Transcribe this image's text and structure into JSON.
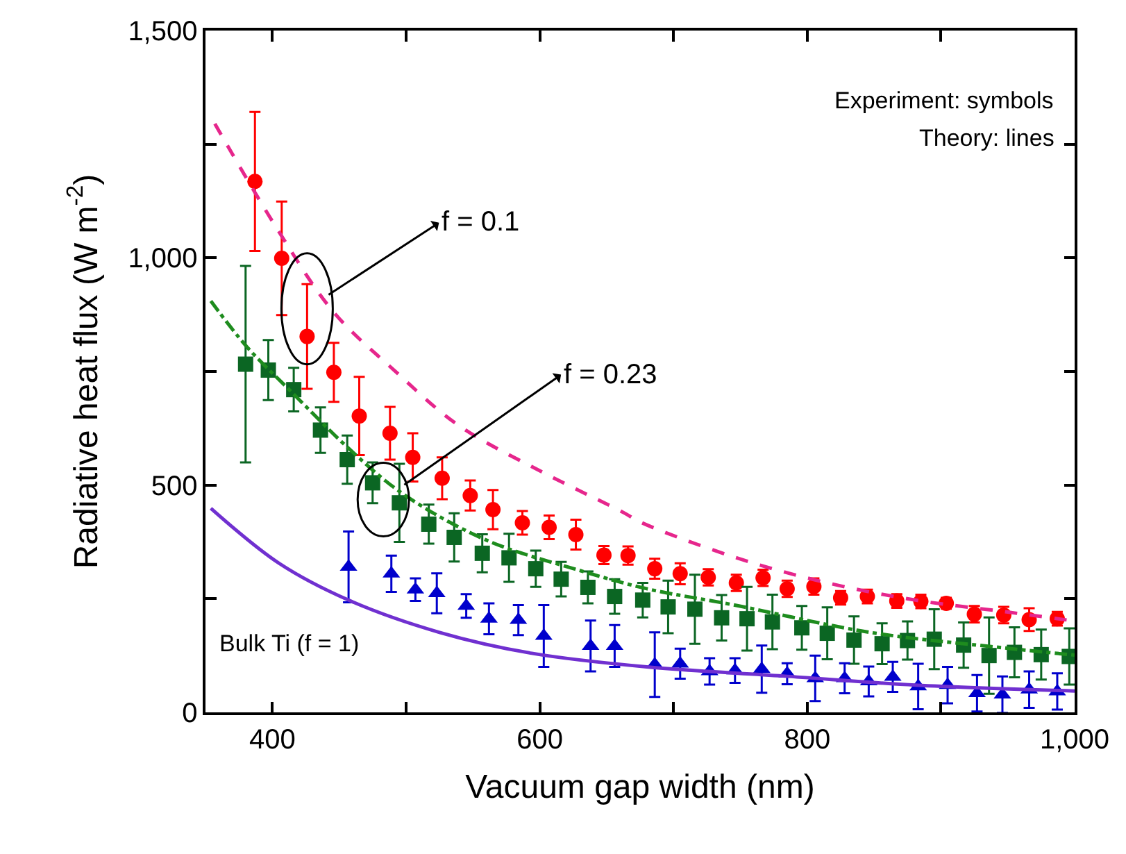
{
  "chart_data": {
    "type": "scatter",
    "xlabel": "Vacuum gap width (nm)",
    "ylabel": "Radiative heat flux (W m$^{-2}$)",
    "xlim": [
      350,
      1000
    ],
    "ylim": [
      0,
      1500
    ],
    "xticks": [
      {
        "value": 400,
        "label": "400"
      },
      {
        "value": 500,
        "label": null
      },
      {
        "value": 600,
        "label": "600"
      },
      {
        "value": 700,
        "label": null
      },
      {
        "value": 800,
        "label": "800"
      },
      {
        "value": 900,
        "label": null
      },
      {
        "value": 1000,
        "label": "1,000"
      }
    ],
    "yticks": [
      {
        "value": 0,
        "label": "0"
      },
      {
        "value": 250,
        "label": null
      },
      {
        "value": 500,
        "label": "500"
      },
      {
        "value": 750,
        "label": null
      },
      {
        "value": 1000,
        "label": "1,000"
      },
      {
        "value": 1250,
        "label": null
      },
      {
        "value": 1500,
        "label": "1,500"
      }
    ],
    "series": [
      {
        "marker": "circle",
        "color": "#ff0000",
        "x": [
          387,
          407,
          426,
          446,
          465,
          488,
          505,
          527,
          548,
          565,
          587,
          607,
          627,
          648,
          666,
          686,
          705,
          726,
          747,
          767,
          785,
          805,
          825,
          845,
          867,
          885,
          904,
          925,
          947,
          966,
          987
        ],
        "values": [
          1168,
          999,
          827,
          748,
          652,
          614,
          561,
          515,
          477,
          446,
          417,
          407,
          391,
          346,
          345,
          316,
          305,
          297,
          285,
          296,
          272,
          277,
          252,
          255,
          245,
          244,
          240,
          216,
          214,
          204,
          206
        ],
        "errors": [
          153,
          125,
          115,
          65,
          86,
          58,
          53,
          46,
          33,
          43,
          26,
          26,
          33,
          20,
          20,
          22,
          23,
          18,
          18,
          18,
          18,
          18,
          15,
          15,
          15,
          15,
          12,
          18,
          18,
          25,
          15
        ]
      },
      {
        "marker": "square",
        "color": "#0b6623",
        "x": [
          380,
          397,
          416,
          436,
          456,
          475,
          495,
          517,
          536,
          557,
          577,
          597,
          616,
          636,
          656,
          677,
          696,
          716,
          736,
          755,
          774,
          796,
          815,
          835,
          856,
          875,
          895,
          917,
          936,
          955,
          975,
          996
        ],
        "values": [
          766,
          753,
          710,
          621,
          556,
          505,
          461,
          414,
          385,
          350,
          340,
          316,
          293,
          275,
          255,
          247,
          232,
          227,
          208,
          206,
          199,
          186,
          174,
          159,
          151,
          158,
          161,
          148,
          125,
          132,
          127,
          123
        ],
        "errors": [
          216,
          66,
          48,
          50,
          53,
          45,
          86,
          43,
          53,
          42,
          53,
          40,
          38,
          35,
          38,
          38,
          58,
          76,
          50,
          70,
          60,
          48,
          57,
          52,
          45,
          42,
          66,
          50,
          84,
          55,
          55,
          62
        ]
      },
      {
        "marker": "triangle",
        "color": "#0000cc",
        "x": [
          457,
          489,
          507,
          523,
          545,
          562,
          584,
          603,
          638,
          656,
          686,
          705,
          727,
          746,
          766,
          785,
          806,
          828,
          846,
          864,
          883,
          905,
          927,
          946,
          966,
          987
        ],
        "values": [
          320,
          305,
          270,
          262,
          234,
          206,
          203,
          168,
          146,
          146,
          105,
          107,
          90,
          92,
          95,
          85,
          75,
          75,
          68,
          78,
          57,
          60,
          42,
          39,
          50,
          46
        ],
        "errors": [
          78,
          40,
          25,
          44,
          26,
          34,
          33,
          68,
          56,
          46,
          71,
          33,
          29,
          27,
          52,
          23,
          50,
          33,
          33,
          33,
          50,
          40,
          40,
          40,
          40,
          40
        ]
      },
      {
        "type": "line",
        "line_style": "dashed",
        "color": "#e6268c",
        "x": [
          357,
          405,
          446,
          491,
          539,
          601,
          663,
          675,
          744,
          812,
          881,
          949,
          1000
        ],
        "values": [
          1295,
          1057,
          880,
          753,
          632,
          530,
          439,
          419,
          343,
          287,
          247,
          221,
          201
        ]
      },
      {
        "type": "line",
        "line_style": "dashdot",
        "color": "#1e8c1e",
        "x": [
          354,
          381,
          415,
          457,
          498,
          560,
          629,
          680,
          744,
          847,
          950,
          1000
        ],
        "values": [
          905,
          804,
          703,
          581,
          480,
          379,
          313,
          272,
          237,
          176,
          141,
          126
        ]
      },
      {
        "type": "line",
        "line_style": "solid",
        "color": "#7030d0",
        "x": [
          354,
          405,
          457,
          525,
          594,
          680,
          782,
          881,
          1000
        ],
        "values": [
          449,
          328,
          247,
          176,
          130,
          100,
          80,
          60,
          47
        ]
      }
    ],
    "annotations": [
      "Experiment: symbols",
      "Theory: lines",
      {
        "text": "f = 0.1",
        "x": 426,
        "y": 888
      },
      {
        "text": "f = 0.23",
        "x": 483,
        "y": 468
      },
      "Bulk Ti (f = 1)"
    ]
  }
}
